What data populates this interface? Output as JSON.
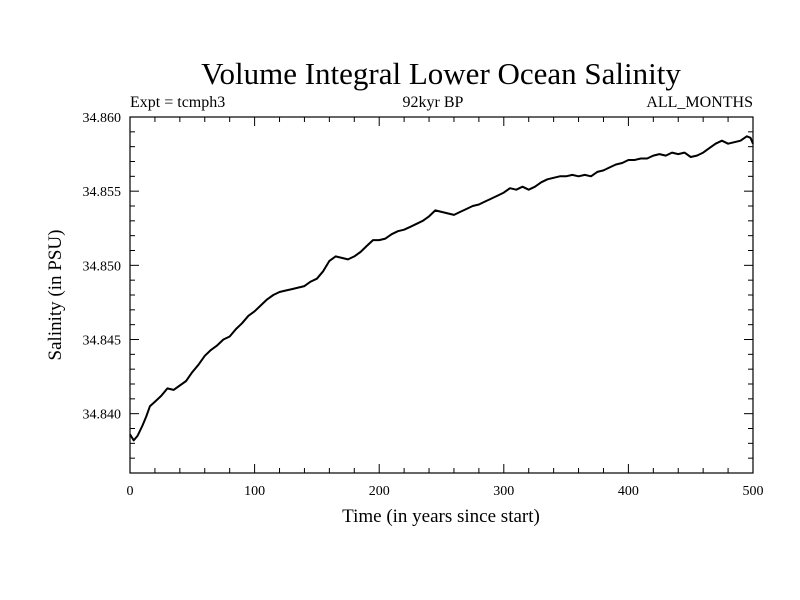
{
  "chart_data": {
    "type": "line",
    "title": "Volume Integral Lower Ocean Salinity",
    "subtitle_left": "Expt = tcmph3",
    "subtitle_center": "92kyr BP",
    "subtitle_right": "ALL_MONTHS",
    "xlabel": "Time (in years since start)",
    "ylabel": "Salinity (in PSU)",
    "xlim": [
      0,
      500
    ],
    "ylim": [
      34.836,
      34.86
    ],
    "x_ticks": [
      0,
      100,
      200,
      300,
      400,
      500
    ],
    "x_tick_labels": [
      "0",
      "100",
      "200",
      "300",
      "400",
      "500"
    ],
    "y_ticks": [
      34.84,
      34.845,
      34.85,
      34.855,
      34.86
    ],
    "y_tick_labels": [
      "34.840",
      "34.845",
      "34.850",
      "34.855",
      "34.860"
    ],
    "grid": false,
    "series": [
      {
        "x": [
          0,
          3,
          6,
          10,
          13,
          16,
          20,
          25,
          30,
          35,
          40,
          45,
          50,
          55,
          60,
          65,
          70,
          75,
          80,
          85,
          90,
          95,
          100,
          105,
          110,
          115,
          120,
          125,
          130,
          135,
          140,
          145,
          150,
          155,
          160,
          165,
          170,
          175,
          180,
          185,
          190,
          195,
          200,
          205,
          210,
          215,
          220,
          225,
          230,
          235,
          240,
          245,
          250,
          255,
          260,
          265,
          270,
          275,
          280,
          285,
          290,
          295,
          300,
          305,
          310,
          315,
          320,
          325,
          330,
          335,
          340,
          345,
          350,
          355,
          360,
          365,
          370,
          375,
          380,
          385,
          390,
          395,
          400,
          405,
          410,
          415,
          420,
          425,
          430,
          435,
          440,
          445,
          450,
          455,
          460,
          465,
          470,
          475,
          480,
          485,
          490,
          495,
          498,
          500
        ],
        "y": [
          34.8386,
          34.8382,
          34.8385,
          34.8392,
          34.8398,
          34.8405,
          34.8408,
          34.8412,
          34.8417,
          34.8416,
          34.8419,
          34.8422,
          34.8428,
          34.8433,
          34.8439,
          34.8443,
          34.8446,
          34.845,
          34.8452,
          34.8457,
          34.8461,
          34.8466,
          34.8469,
          34.8473,
          34.8477,
          34.848,
          34.8482,
          34.8483,
          34.8484,
          34.8485,
          34.8486,
          34.8489,
          34.8491,
          34.8496,
          34.8503,
          34.8506,
          34.8505,
          34.8504,
          34.8506,
          34.8509,
          34.8513,
          34.8517,
          34.8517,
          34.8518,
          34.8521,
          34.8523,
          34.8524,
          34.8526,
          34.8528,
          34.853,
          34.8533,
          34.8537,
          34.8536,
          34.8535,
          34.8534,
          34.8536,
          34.8538,
          34.854,
          34.8541,
          34.8543,
          34.8545,
          34.8547,
          34.8549,
          34.8552,
          34.8551,
          34.8553,
          34.8551,
          34.8553,
          34.8556,
          34.8558,
          34.8559,
          34.856,
          34.856,
          34.8561,
          34.856,
          34.8561,
          34.856,
          34.8563,
          34.8564,
          34.8566,
          34.8568,
          34.8569,
          34.8571,
          34.8571,
          34.8572,
          34.8572,
          34.8574,
          34.8575,
          34.8574,
          34.8576,
          34.8575,
          34.8576,
          34.8573,
          34.8574,
          34.8576,
          34.8579,
          34.8582,
          34.8584,
          34.8582,
          34.8583,
          34.8584,
          34.8587,
          34.8586,
          34.8582
        ]
      }
    ]
  }
}
